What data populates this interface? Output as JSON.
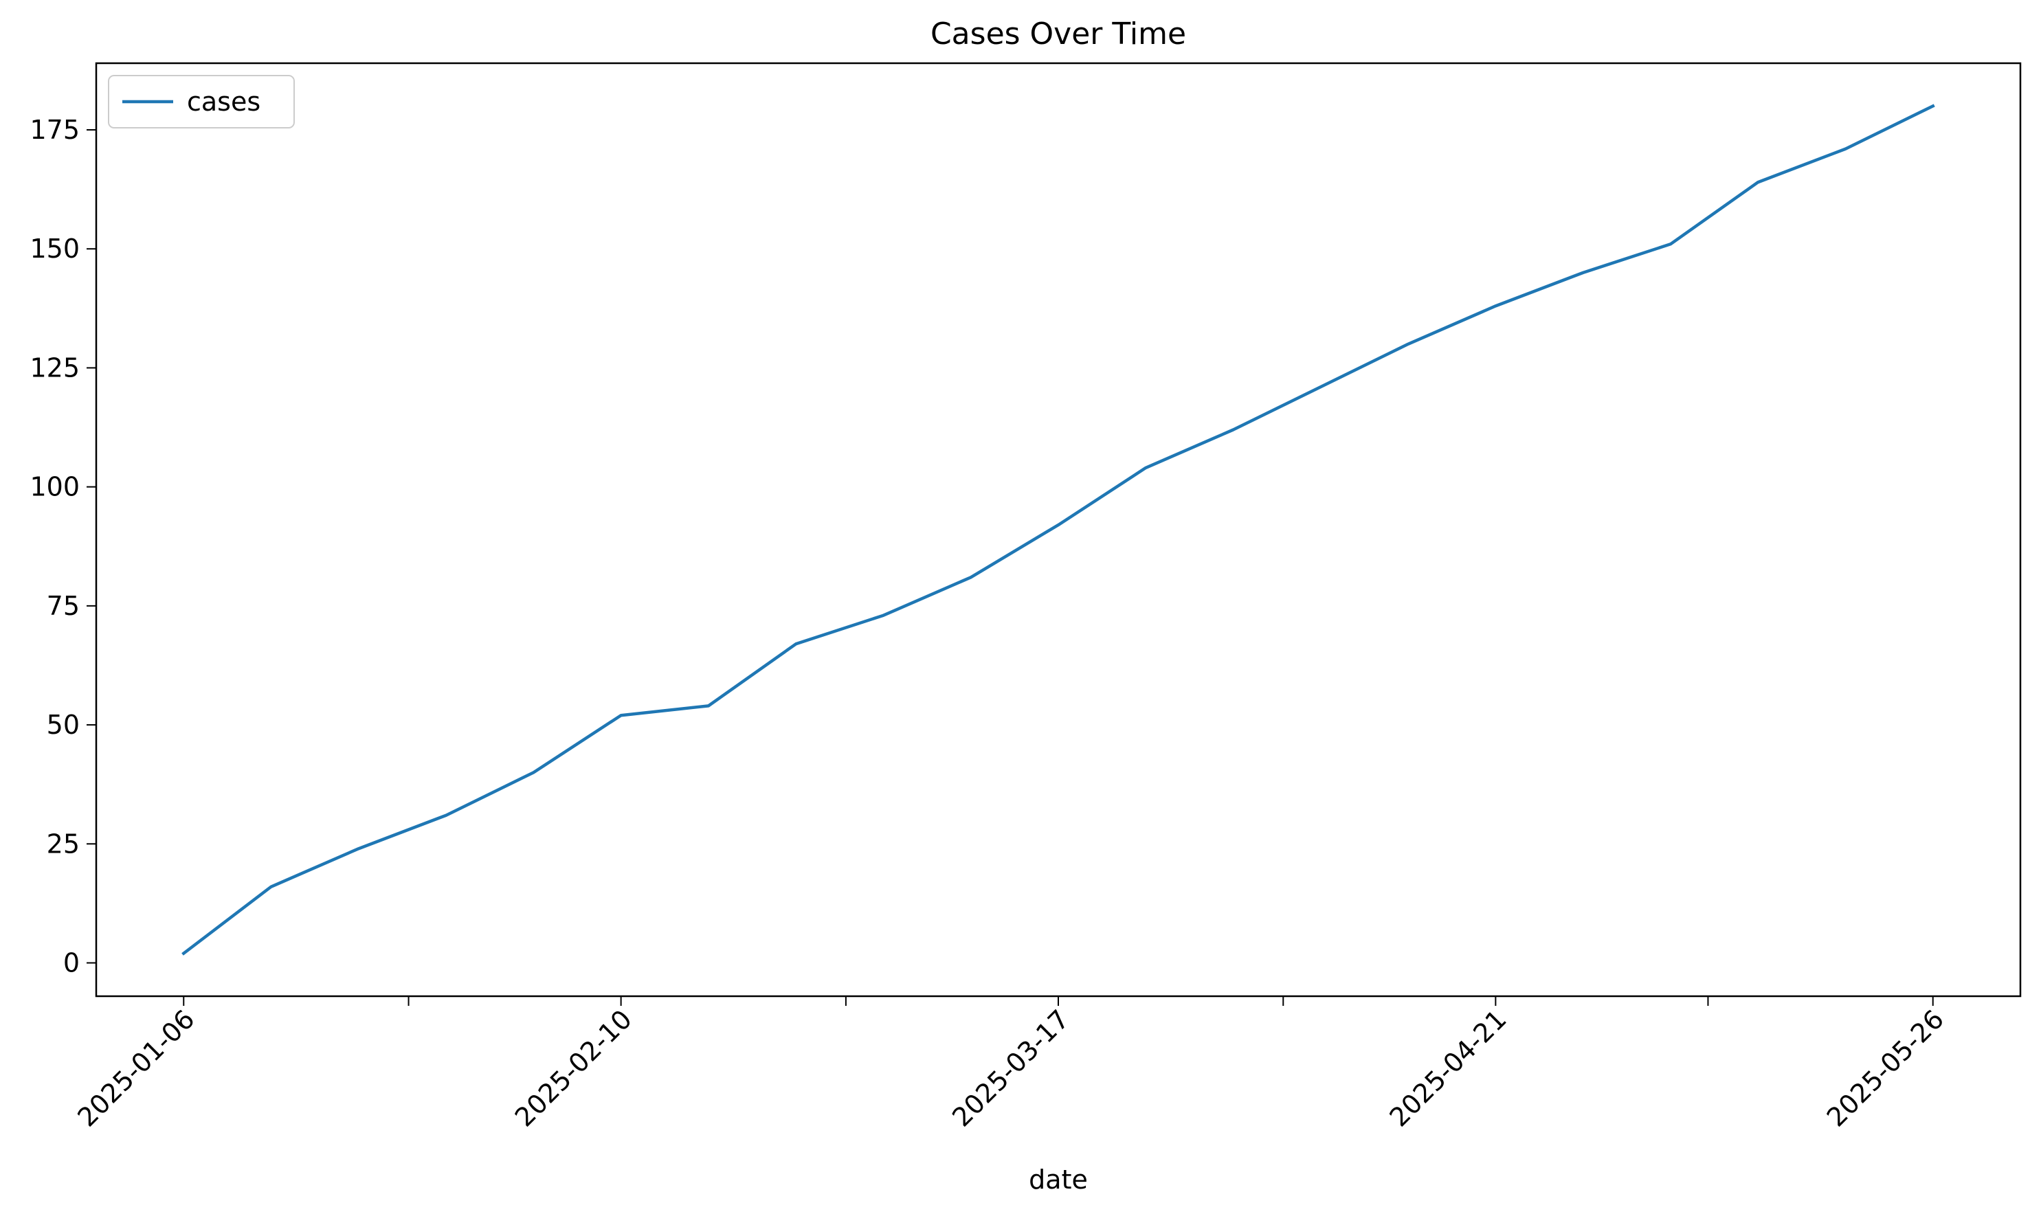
{
  "chart_data": {
    "type": "line",
    "title": "Cases Over Time",
    "xlabel": "date",
    "ylabel": "",
    "x": [
      "2025-01-06",
      "2025-01-13",
      "2025-01-20",
      "2025-01-27",
      "2025-02-03",
      "2025-02-10",
      "2025-02-17",
      "2025-02-24",
      "2025-03-03",
      "2025-03-10",
      "2025-03-17",
      "2025-03-24",
      "2025-03-31",
      "2025-04-07",
      "2025-04-14",
      "2025-04-21",
      "2025-04-28",
      "2025-05-05",
      "2025-05-12",
      "2025-05-19",
      "2025-05-26"
    ],
    "series": [
      {
        "name": "cases",
        "color": "#1f77b4",
        "values": [
          2,
          16,
          24,
          31,
          40,
          52,
          54,
          67,
          73,
          81,
          92,
          104,
          112,
          121,
          130,
          138,
          145,
          151,
          164,
          171,
          180
        ]
      }
    ],
    "xticks": [
      "2025-01-06",
      "2025-02-10",
      "2025-03-17",
      "2025-04-21",
      "2025-05-26"
    ],
    "minor_xticks": [
      "2025-01-24",
      "2025-02-28",
      "2025-04-04",
      "2025-05-08"
    ],
    "yticks": [
      0,
      25,
      50,
      75,
      100,
      125,
      150,
      175
    ],
    "ylim": [
      -7,
      189
    ],
    "xlim": [
      "2025-12-31",
      "2025-06-01"
    ],
    "grid": false,
    "legend_position": "upper-left"
  }
}
